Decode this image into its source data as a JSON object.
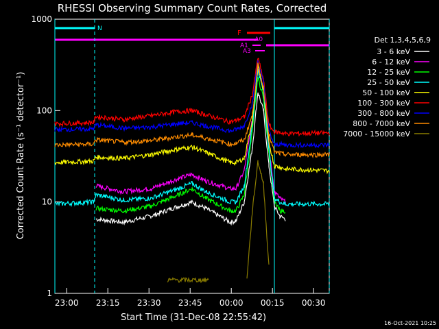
{
  "chart_data": {
    "type": "line",
    "title": "RHESSI Observing Summary Count Rates, Corrected",
    "xlabel": "Start Time (31-Dec-08 22:55:42)",
    "ylabel": "Corrected Count Rate (s⁻¹ detector⁻¹)",
    "y_scale": "log",
    "ylim": [
      1,
      1000
    ],
    "xlim_minutes_after_start": [
      0,
      100
    ],
    "x_tick_labels": [
      "23:00",
      "23:15",
      "23:30",
      "23:45",
      "00:00",
      "00:15",
      "00:30"
    ],
    "x_tick_minutes": [
      4.3,
      19.3,
      34.3,
      49.3,
      64.3,
      79.3,
      94.3
    ],
    "y_tick_labels": [
      "1",
      "10",
      "100",
      "1000"
    ],
    "y_tick_values": [
      1,
      10,
      100,
      1000
    ],
    "detectors_label": "Det 1,3,4,5,6,9",
    "series": [
      {
        "name": "3 - 6 keV",
        "color": "#ffffff",
        "x": [
          0,
          14,
          15,
          25,
          35,
          45,
          50,
          55,
          64,
          66,
          69,
          72,
          74,
          76,
          78,
          80,
          82,
          84,
          100
        ],
        "y": [
          null,
          null,
          6.5,
          6,
          7,
          9,
          10,
          8.5,
          6,
          6.2,
          10,
          40,
          160,
          100,
          25,
          9,
          7,
          6.5,
          null
        ]
      },
      {
        "name": "6 - 12 keV",
        "color": "#ff00ff",
        "x": [
          0,
          14,
          15,
          25,
          35,
          45,
          50,
          55,
          64,
          66,
          69,
          72,
          74,
          76,
          78,
          80,
          82,
          84,
          100
        ],
        "y": [
          null,
          null,
          15,
          13,
          14,
          18,
          20,
          17,
          14,
          14,
          22,
          80,
          300,
          180,
          40,
          13,
          11,
          10,
          null
        ]
      },
      {
        "name": "12 - 25 keV",
        "color": "#00ff00",
        "x": [
          0,
          14,
          15,
          25,
          35,
          45,
          50,
          55,
          64,
          66,
          69,
          72,
          74,
          76,
          78,
          80,
          82,
          84,
          100
        ],
        "y": [
          null,
          null,
          8.5,
          8,
          9,
          12,
          14,
          11,
          8,
          8,
          12,
          60,
          230,
          140,
          35,
          10,
          8,
          8,
          null
        ]
      },
      {
        "name": "25 - 50 keV",
        "color": "#00ffff",
        "x": [
          0,
          14,
          15,
          25,
          35,
          45,
          50,
          55,
          64,
          66,
          69,
          72,
          74,
          76,
          78,
          80,
          82,
          84,
          100
        ],
        "y": [
          9.5,
          10,
          12,
          10.5,
          11,
          14,
          16,
          13,
          10,
          10,
          15,
          70,
          280,
          160,
          38,
          11,
          10,
          9.5,
          9.5
        ]
      },
      {
        "name": "50 - 100 keV",
        "color": "#ffff00",
        "x": [
          0,
          14,
          15,
          25,
          35,
          45,
          50,
          55,
          64,
          66,
          69,
          72,
          74,
          76,
          78,
          80,
          82,
          84,
          100
        ],
        "y": [
          27,
          28,
          31,
          30,
          33,
          38,
          40,
          35,
          27,
          27,
          30,
          80,
          310,
          170,
          45,
          25,
          24,
          23,
          22
        ]
      },
      {
        "name": "100 - 300 keV",
        "color": "#ff0000",
        "x": [
          0,
          14,
          15,
          25,
          35,
          45,
          50,
          55,
          64,
          66,
          69,
          72,
          74,
          76,
          78,
          80,
          82,
          84,
          100
        ],
        "y": [
          72,
          74,
          86,
          80,
          88,
          98,
          100,
          90,
          75,
          78,
          85,
          150,
          380,
          220,
          70,
          58,
          58,
          56,
          57
        ]
      },
      {
        "name": "300 - 800 keV",
        "color": "#0000ff",
        "x": [
          0,
          14,
          15,
          25,
          35,
          45,
          50,
          55,
          64,
          66,
          69,
          72,
          74,
          76,
          78,
          80,
          82,
          84,
          100
        ],
        "y": [
          62,
          63,
          70,
          64,
          66,
          72,
          74,
          68,
          60,
          62,
          68,
          120,
          350,
          200,
          60,
          42,
          43,
          42,
          42
        ]
      },
      {
        "name": "800 - 7000 keV",
        "color": "#ff8c00",
        "x": [
          0,
          14,
          15,
          25,
          35,
          45,
          50,
          55,
          64,
          66,
          69,
          72,
          74,
          76,
          78,
          80,
          82,
          84,
          100
        ],
        "y": [
          42,
          43,
          48,
          45,
          47,
          52,
          54,
          50,
          43,
          44,
          48,
          90,
          320,
          180,
          55,
          35,
          34,
          33,
          33
        ]
      },
      {
        "name": "7000 - 15000 keV",
        "color": "#8b7d00",
        "x": [
          0,
          40,
          41,
          56,
          57,
          70,
          72,
          74,
          76,
          78,
          100
        ],
        "y": [
          null,
          null,
          1.4,
          1.4,
          null,
          1.5,
          8,
          28,
          16,
          2,
          null
        ]
      }
    ],
    "annotations": {
      "N": "N",
      "F": "F",
      "A0": "A0",
      "A1": "A1",
      "A3": "A3"
    },
    "timestamp": "16-Oct-2021 10:25"
  }
}
